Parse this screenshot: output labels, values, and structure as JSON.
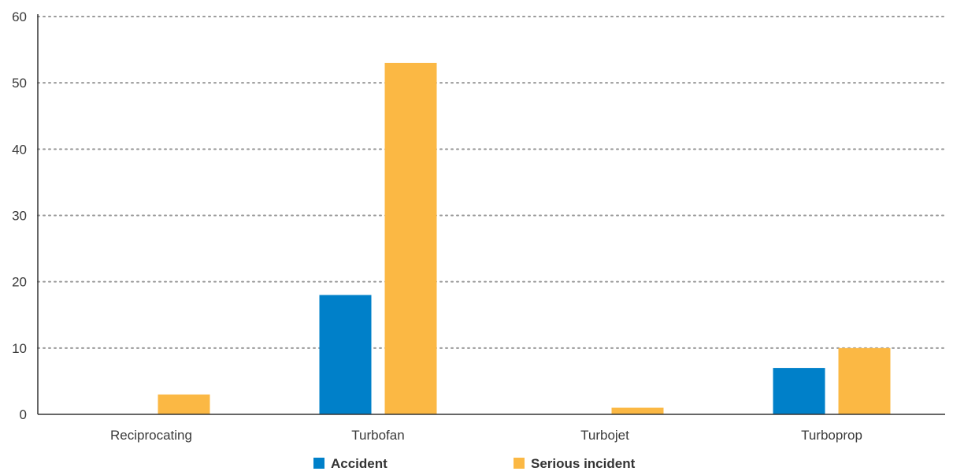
{
  "chart_data": {
    "type": "bar",
    "title": "",
    "xlabel": "",
    "ylabel": "",
    "categories": [
      "Reciprocating",
      "Turbofan",
      "Turbojet",
      "Turboprop"
    ],
    "series": [
      {
        "name": "Accident",
        "color": "#0080c9",
        "values": [
          0,
          18,
          0,
          7
        ]
      },
      {
        "name": "Serious incident",
        "color": "#fbb844",
        "values": [
          3,
          53,
          1,
          10
        ]
      }
    ],
    "ylim": [
      0,
      60
    ],
    "yticks": [
      "0",
      "10",
      "20",
      "30",
      "40",
      "50",
      "60"
    ],
    "grid": true,
    "legend_position": "bottom"
  }
}
